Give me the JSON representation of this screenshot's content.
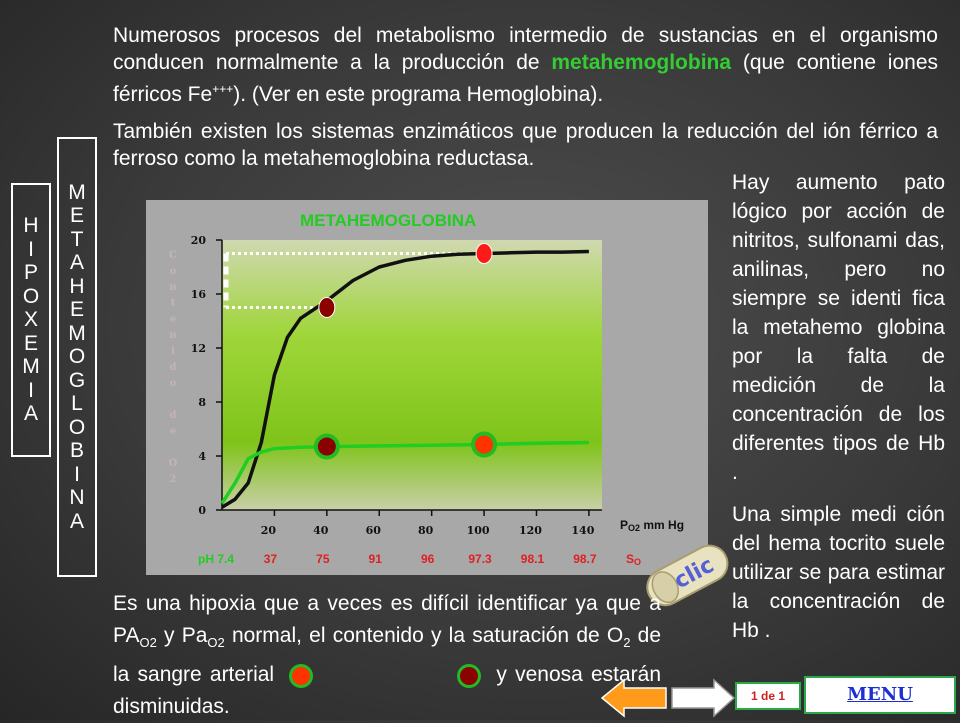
{
  "intro": {
    "p1_before": "Numerosos procesos del metabolismo intermedio de sustancias en el organismo conducen normalmente a la producción de ",
    "p1_highlight": "metahemoglobina",
    "p1_after": " (que contiene iones férricos Fe",
    "p1_sup": "+++",
    "p1_end": "). (Ver en este programa Hemoglobina).",
    "p2": " También existen los sistemas enzimáticos que producen la reducción del ión férrico a ferroso como la metahemoglobina reductasa."
  },
  "side_labels": {
    "hipoxemia": [
      "H",
      "I",
      "P",
      "O",
      "X",
      "E",
      "M",
      "I",
      "A"
    ],
    "metahemoglobina": [
      "M",
      "E",
      "T",
      "A",
      "H",
      "E",
      "M",
      "O",
      "G",
      "L",
      "O",
      "B",
      "I",
      "N",
      "A"
    ]
  },
  "chart_data": {
    "type": "line",
    "title": "METAHEMOGLOBINA",
    "ylabel_chars": [
      "C",
      "o",
      "n",
      "t",
      "e",
      "n",
      "i",
      "d",
      "o",
      "",
      "d",
      "e",
      "",
      "O",
      "2"
    ],
    "xlabel": "P",
    "xlabel_sub": "O2",
    "xlabel_unit": " mm Hg",
    "y_ticks": [
      "0",
      "4",
      "8",
      "12",
      "16",
      "20"
    ],
    "x_ticks": [
      "20",
      "40",
      "60",
      "80",
      "100",
      "120",
      "140"
    ],
    "xlim": [
      0,
      145
    ],
    "ylim": [
      0,
      20
    ],
    "series": [
      {
        "color": "#111111",
        "x": [
          0,
          5,
          10,
          15,
          20,
          25,
          30,
          40,
          50,
          60,
          70,
          80,
          90,
          100,
          110,
          120,
          130,
          140
        ],
        "y": [
          0.2,
          0.8,
          2.0,
          5.0,
          10.0,
          12.8,
          14.2,
          15.5,
          17.0,
          18.0,
          18.5,
          18.8,
          18.95,
          19.0,
          19.05,
          19.1,
          19.1,
          19.15
        ]
      },
      {
        "color": "#22cc22",
        "x": [
          0,
          5,
          10,
          15,
          20,
          25,
          30,
          40,
          60,
          80,
          100,
          120,
          140
        ],
        "y": [
          0.5,
          2.0,
          3.8,
          4.3,
          4.55,
          4.6,
          4.65,
          4.7,
          4.75,
          4.8,
          4.85,
          4.95,
          5.0
        ]
      }
    ],
    "markers": [
      {
        "x": 40,
        "y": 15.0,
        "fill": "#8b0000",
        "ring": false
      },
      {
        "x": 100,
        "y": 19.0,
        "fill": "#ff1a1a",
        "ring": false
      },
      {
        "x": 40,
        "y": 4.7,
        "fill": "#8b0000",
        "ring": true
      },
      {
        "x": 100,
        "y": 4.85,
        "fill": "#ff3300",
        "ring": true
      }
    ],
    "ph_label": "pH 7.4",
    "sat_values": [
      "37",
      "75",
      "91",
      "96",
      "97.3",
      "98.1",
      "98.7"
    ],
    "sat_label": "S",
    "sat_label_sub": "O"
  },
  "right_text": {
    "p1": "Hay aumento pato lógico por acción de nitritos, sulfonami das, anilinas, pero no siempre se identi fica la metahemo globina por la falta de medición de la concentración de los diferentes tipos de Hb .",
    "p2": "Una simple medi ción del hema tocrito suele utilizar se para estimar la concentración de Hb ."
  },
  "bottom_text": {
    "t1": "Es una hipoxia que a veces es difícil identificar ya que a PA",
    "sub1": "O2",
    "t2": " y Pa",
    "sub2": "O2",
    "t3": " normal, el contenido y la saturación de O",
    "sub3": "2",
    "t4": " de la sangre arterial ",
    "t5": " y venosa estarán disminuidas."
  },
  "nav": {
    "clic_label": "clic",
    "pager": "1 de 1",
    "menu_label": "MENU"
  },
  "colors": {
    "arterial": "#ff3300",
    "venous": "#8b0000",
    "ring": "#22bb22"
  }
}
